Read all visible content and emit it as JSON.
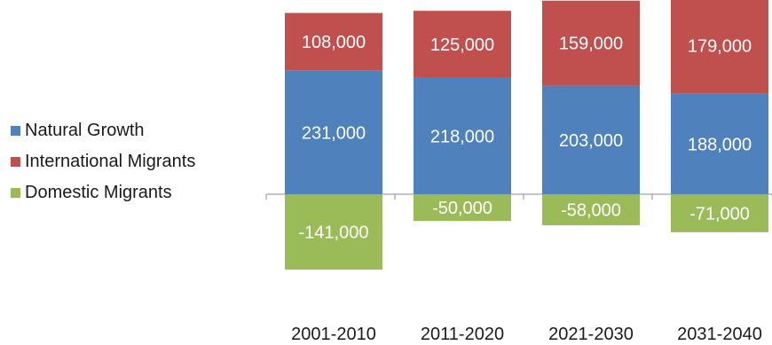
{
  "chart_data": {
    "type": "bar",
    "stacked": true,
    "categories": [
      "2001-2010",
      "2011-2020",
      "2021-2030",
      "2031-2040"
    ],
    "series": [
      {
        "name": "Natural Growth",
        "values": [
          231000,
          218000,
          203000,
          188000
        ],
        "labels": [
          "231,000",
          "218,000",
          "203,000",
          "188,000"
        ],
        "color": "#4F81BD"
      },
      {
        "name": "International Migrants",
        "values": [
          108000,
          125000,
          159000,
          179000
        ],
        "labels": [
          "108,000",
          "125,000",
          "159,000",
          "179,000"
        ],
        "color": "#C0504D"
      },
      {
        "name": "Domestic Migrants",
        "values": [
          -141000,
          -50000,
          -58000,
          -71000
        ],
        "labels": [
          "-141,000",
          "-50,000",
          "-58,000",
          "-71,000"
        ],
        "color": "#9BBB59"
      }
    ],
    "legend_position": "left",
    "grid": false,
    "data_labels": true
  }
}
